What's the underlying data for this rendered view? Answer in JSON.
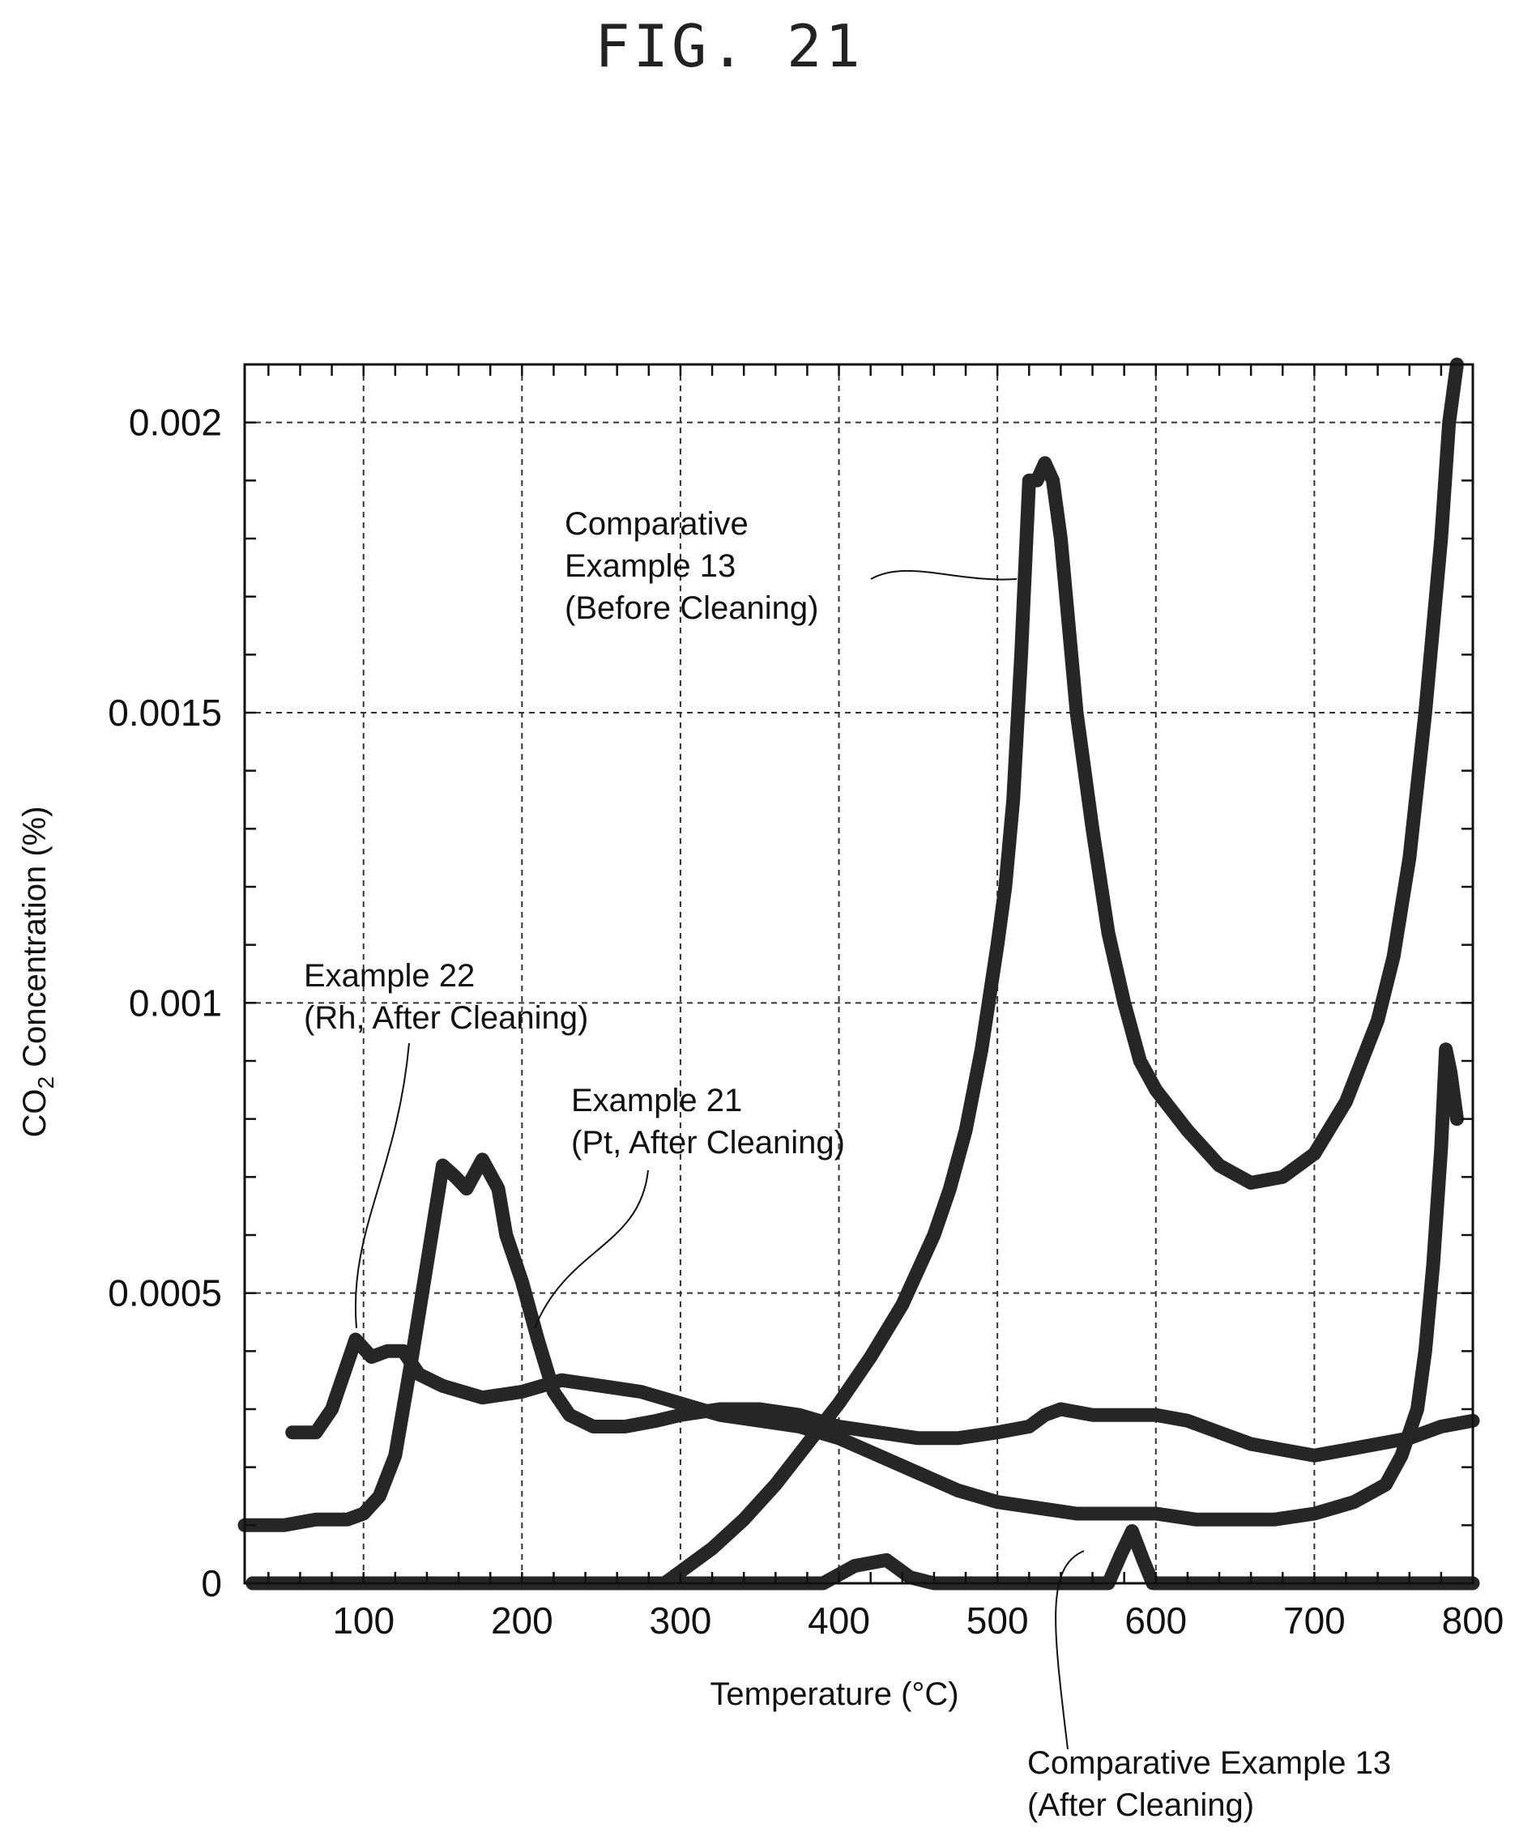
{
  "figure_title": "FIG. 21",
  "chart_data": {
    "type": "line",
    "title": "FIG. 21",
    "xlabel": "Temperature (°C)",
    "ylabel_main": "CO",
    "ylabel_sub": "2",
    "ylabel_rest": " Concentration (%)",
    "xlim": [
      25,
      800
    ],
    "ylim": [
      0,
      0.0021
    ],
    "grid": true,
    "x_ticks": [
      100,
      200,
      300,
      400,
      500,
      600,
      700,
      800
    ],
    "x_tick_labels": [
      "100",
      "200",
      "300",
      "400",
      "500",
      "600",
      "700",
      "800"
    ],
    "y_ticks": [
      0,
      0.0005,
      0.001,
      0.0015,
      0.002
    ],
    "y_tick_labels": [
      "0",
      "0.0005",
      "0.001",
      "0.0015",
      "0.002"
    ],
    "series": [
      {
        "name": "Comparative Example 13 (Before Cleaning)",
        "points": [
          [
            290,
            0
          ],
          [
            300,
            2e-05
          ],
          [
            320,
            6e-05
          ],
          [
            340,
            0.00011
          ],
          [
            360,
            0.00017
          ],
          [
            380,
            0.00024
          ],
          [
            400,
            0.00031
          ],
          [
            420,
            0.00039
          ],
          [
            440,
            0.00048
          ],
          [
            460,
            0.0006
          ],
          [
            470,
            0.00068
          ],
          [
            480,
            0.00078
          ],
          [
            490,
            0.00092
          ],
          [
            500,
            0.0011
          ],
          [
            505,
            0.0012
          ],
          [
            510,
            0.00135
          ],
          [
            515,
            0.0016
          ],
          [
            520,
            0.0019
          ],
          [
            525,
            0.0019
          ],
          [
            530,
            0.00193
          ],
          [
            535,
            0.0019
          ],
          [
            540,
            0.0018
          ],
          [
            550,
            0.0015
          ],
          [
            560,
            0.0013
          ],
          [
            570,
            0.00112
          ],
          [
            580,
            0.001
          ],
          [
            590,
            0.0009
          ],
          [
            600,
            0.00085
          ],
          [
            620,
            0.00078
          ],
          [
            640,
            0.00072
          ],
          [
            660,
            0.00069
          ],
          [
            680,
            0.0007
          ],
          [
            700,
            0.00074
          ],
          [
            720,
            0.00083
          ],
          [
            740,
            0.00097
          ],
          [
            750,
            0.00108
          ],
          [
            760,
            0.00125
          ],
          [
            770,
            0.0015
          ],
          [
            780,
            0.0018
          ],
          [
            785,
            0.002
          ],
          [
            790,
            0.0021
          ]
        ]
      },
      {
        "name": "Comparative Example 13 (After Cleaning)",
        "points": [
          [
            30,
            0
          ],
          [
            390,
            0
          ],
          [
            410,
            3e-05
          ],
          [
            430,
            4e-05
          ],
          [
            445,
            1e-05
          ],
          [
            460,
            0
          ],
          [
            570,
            0
          ],
          [
            578,
            5e-05
          ],
          [
            585,
            9e-05
          ],
          [
            592,
            4e-05
          ],
          [
            598,
            0
          ],
          [
            800,
            0
          ]
        ]
      },
      {
        "name": "Example 22 (Rh, After Cleaning)",
        "points": [
          [
            55,
            0.00026
          ],
          [
            70,
            0.00026
          ],
          [
            80,
            0.0003
          ],
          [
            90,
            0.00038
          ],
          [
            95,
            0.00042
          ],
          [
            105,
            0.00039
          ],
          [
            115,
            0.0004
          ],
          [
            125,
            0.0004
          ],
          [
            135,
            0.00036
          ],
          [
            150,
            0.00034
          ],
          [
            175,
            0.00032
          ],
          [
            200,
            0.00033
          ],
          [
            225,
            0.00035
          ],
          [
            250,
            0.00034
          ],
          [
            275,
            0.00033
          ],
          [
            300,
            0.00031
          ],
          [
            325,
            0.00029
          ],
          [
            350,
            0.00028
          ],
          [
            375,
            0.00027
          ],
          [
            400,
            0.00025
          ],
          [
            425,
            0.00022
          ],
          [
            450,
            0.00019
          ],
          [
            475,
            0.00016
          ],
          [
            500,
            0.00014
          ],
          [
            525,
            0.00013
          ],
          [
            550,
            0.00012
          ],
          [
            575,
            0.00012
          ],
          [
            600,
            0.00012
          ],
          [
            625,
            0.00011
          ],
          [
            650,
            0.00011
          ],
          [
            675,
            0.00011
          ],
          [
            700,
            0.00012
          ],
          [
            725,
            0.00014
          ],
          [
            745,
            0.00017
          ],
          [
            755,
            0.00022
          ],
          [
            765,
            0.0003
          ],
          [
            770,
            0.0004
          ],
          [
            775,
            0.00055
          ],
          [
            780,
            0.00075
          ],
          [
            783,
            0.00092
          ],
          [
            786,
            0.00088
          ],
          [
            790,
            0.0008
          ]
        ]
      },
      {
        "name": "Example 21 (Pt, After Cleaning)",
        "points": [
          [
            25,
            0.0001
          ],
          [
            50,
            0.0001
          ],
          [
            70,
            0.00011
          ],
          [
            90,
            0.00011
          ],
          [
            100,
            0.00012
          ],
          [
            110,
            0.00015
          ],
          [
            120,
            0.00022
          ],
          [
            130,
            0.00038
          ],
          [
            140,
            0.00055
          ],
          [
            150,
            0.00072
          ],
          [
            158,
            0.0007
          ],
          [
            165,
            0.00068
          ],
          [
            175,
            0.00073
          ],
          [
            185,
            0.00068
          ],
          [
            190,
            0.0006
          ],
          [
            200,
            0.00052
          ],
          [
            210,
            0.00042
          ],
          [
            220,
            0.00033
          ],
          [
            230,
            0.00029
          ],
          [
            245,
            0.00027
          ],
          [
            265,
            0.00027
          ],
          [
            285,
            0.00028
          ],
          [
            300,
            0.00029
          ],
          [
            325,
            0.0003
          ],
          [
            350,
            0.0003
          ],
          [
            375,
            0.00029
          ],
          [
            400,
            0.00027
          ],
          [
            425,
            0.00026
          ],
          [
            450,
            0.00025
          ],
          [
            475,
            0.00025
          ],
          [
            500,
            0.00026
          ],
          [
            520,
            0.00027
          ],
          [
            530,
            0.00029
          ],
          [
            540,
            0.0003
          ],
          [
            560,
            0.00029
          ],
          [
            580,
            0.00029
          ],
          [
            600,
            0.00029
          ],
          [
            620,
            0.00028
          ],
          [
            640,
            0.00026
          ],
          [
            660,
            0.00024
          ],
          [
            680,
            0.00023
          ],
          [
            700,
            0.00022
          ],
          [
            720,
            0.00023
          ],
          [
            740,
            0.00024
          ],
          [
            760,
            0.00025
          ],
          [
            780,
            0.00027
          ],
          [
            800,
            0.00028
          ]
        ]
      }
    ],
    "annotations": [
      {
        "lines": [
          "Comparative",
          "Example 13",
          "(Before Cleaning)"
        ]
      },
      {
        "lines": [
          "Example 22",
          "(Rh, After Cleaning)"
        ]
      },
      {
        "lines": [
          "Example 21",
          "(Pt, After Cleaning)"
        ]
      },
      {
        "lines": [
          "Comparative Example 13",
          "(After Cleaning)"
        ]
      }
    ]
  }
}
